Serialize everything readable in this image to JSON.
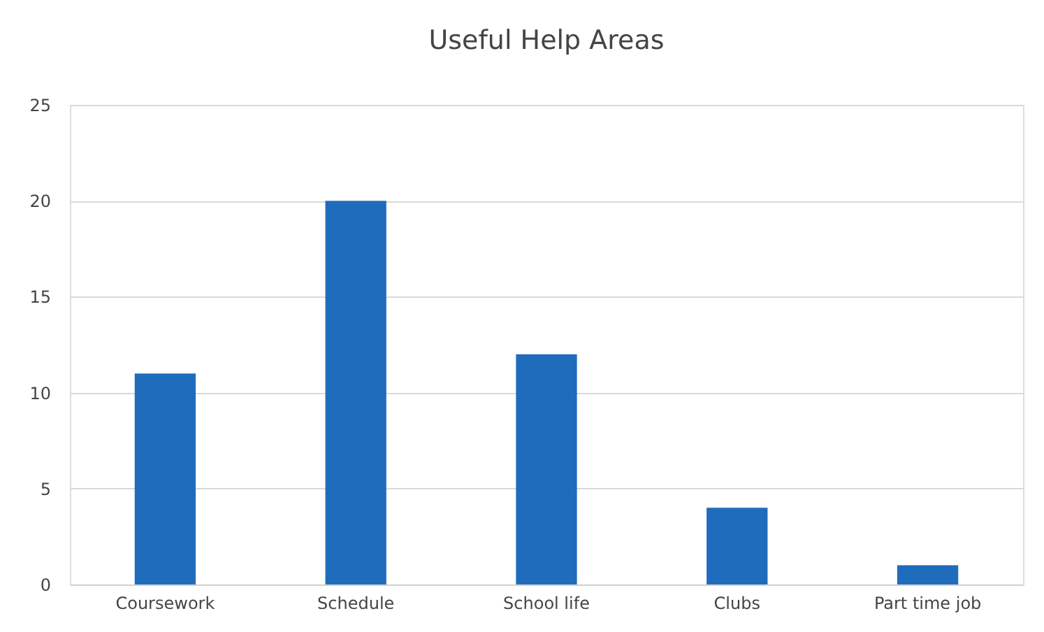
{
  "chart_data": {
    "type": "bar",
    "title": "Useful Help Areas",
    "categories": [
      "Coursework",
      "Schedule",
      "School life",
      "Clubs",
      "Part time job"
    ],
    "values": [
      11,
      20,
      12,
      4,
      1
    ],
    "color": "#1f6cbd",
    "ylim": [
      0,
      25
    ],
    "yticks": [
      0,
      5,
      10,
      15,
      20,
      25
    ],
    "grid": "y"
  }
}
